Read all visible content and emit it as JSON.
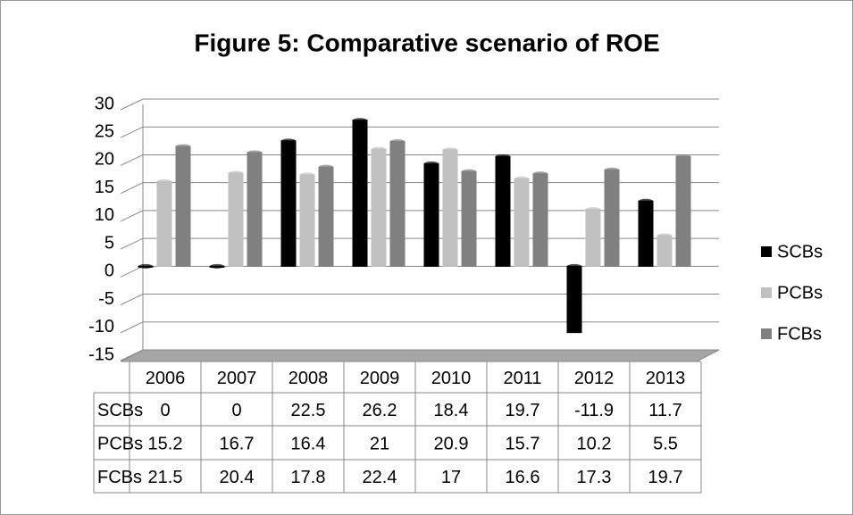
{
  "chart_data": {
    "type": "bar",
    "title": "Figure 5: Comparative scenario of ROE",
    "categories": [
      "2006",
      "2007",
      "2008",
      "2009",
      "2010",
      "2011",
      "2012",
      "2013"
    ],
    "series": [
      {
        "name": "SCBs",
        "color": "#000000",
        "values": [
          0,
          0,
          22.5,
          26.2,
          18.4,
          19.7,
          -11.9,
          11.7
        ]
      },
      {
        "name": "PCBs",
        "color": "#c0c0c0",
        "values": [
          15.2,
          16.7,
          16.4,
          21,
          20.9,
          15.7,
          10.2,
          5.5
        ]
      },
      {
        "name": "FCBs",
        "color": "#808080",
        "values": [
          21.5,
          20.4,
          17.8,
          22.4,
          17,
          16.6,
          17.3,
          19.7
        ]
      }
    ],
    "ylim": [
      -15,
      30
    ],
    "yticks": [
      -15,
      -10,
      -5,
      0,
      5,
      10,
      15,
      20,
      25,
      30
    ],
    "grid": true,
    "legend": "right"
  }
}
